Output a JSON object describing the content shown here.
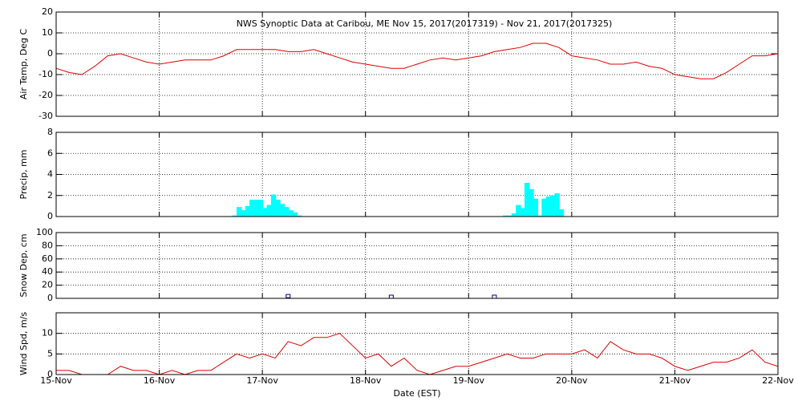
{
  "chart_data": [
    {
      "type": "line",
      "title": "NWS Synoptic Data at Caribou, ME    Nov 15, 2017(2017319) - Nov 21, 2017(2017325)",
      "ylabel": "Air Temp, Deg C",
      "color": "#e00000",
      "xlim": [
        0,
        168
      ],
      "xticks": [
        0,
        24,
        48,
        72,
        96,
        120,
        144,
        168
      ],
      "ylim": [
        -30,
        20
      ],
      "yticks": [
        -30,
        -20,
        -10,
        0,
        10,
        20
      ],
      "grid": true,
      "x": [
        0,
        3,
        6,
        9,
        12,
        15,
        18,
        21,
        24,
        27,
        30,
        33,
        36,
        39,
        42,
        45,
        48,
        51,
        54,
        57,
        60,
        63,
        66,
        69,
        72,
        75,
        78,
        81,
        84,
        87,
        90,
        93,
        96,
        99,
        102,
        105,
        108,
        111,
        114,
        117,
        120,
        123,
        126,
        129,
        132,
        135,
        138,
        141,
        144,
        147,
        150,
        153,
        156,
        159,
        162,
        165,
        168
      ],
      "values": [
        -7,
        -9,
        -10,
        -6,
        -1,
        0,
        -2,
        -4,
        -5,
        -4,
        -3,
        -3,
        -3,
        -1,
        2,
        2,
        2,
        2,
        1,
        1,
        2,
        0,
        -2,
        -4,
        -5,
        -6,
        -7,
        -7,
        -5,
        -3,
        -2,
        -3,
        -2,
        -1,
        1,
        2,
        3,
        5,
        5,
        3,
        -1,
        -2,
        -3,
        -5,
        -5,
        -4,
        -6,
        -7,
        -10,
        -11,
        -12,
        -12,
        -9,
        -5,
        -1,
        -1,
        0
      ]
    },
    {
      "type": "bar",
      "ylabel": "Precip, mm",
      "color": "#00ffff",
      "xlim": [
        0,
        168
      ],
      "xticks": [
        0,
        24,
        48,
        72,
        96,
        120,
        144,
        168
      ],
      "ylim": [
        0,
        8
      ],
      "yticks": [
        0,
        2,
        4,
        6,
        8
      ],
      "grid": true,
      "x": [
        41,
        42,
        43,
        44,
        45,
        46,
        47,
        48,
        49,
        50,
        51,
        52,
        53,
        54,
        55,
        56,
        104,
        105,
        106,
        107,
        108,
        109,
        110,
        111,
        112,
        113,
        114,
        115,
        116,
        117
      ],
      "values": [
        0.1,
        0.9,
        0.6,
        1.0,
        1.6,
        1.6,
        1.6,
        0.8,
        1.1,
        2.1,
        1.6,
        1.2,
        0.9,
        0.6,
        0.4,
        0.1,
        0.1,
        0.1,
        0.3,
        1.1,
        0.8,
        3.2,
        2.6,
        1.7,
        0.1,
        1.7,
        1.9,
        2.0,
        2.2,
        0.7
      ]
    },
    {
      "type": "scatter",
      "ylabel": "Snow Dep, cm",
      "color": "#000080",
      "xlim": [
        0,
        168
      ],
      "xticks": [
        0,
        24,
        48,
        72,
        96,
        120,
        144,
        168
      ],
      "ylim": [
        0,
        100
      ],
      "yticks": [
        0,
        20,
        40,
        60,
        80,
        100
      ],
      "grid": true,
      "x": [
        54,
        78,
        102
      ],
      "values": [
        1,
        0,
        0
      ]
    },
    {
      "type": "line",
      "ylabel": "Wind Spd, m/s",
      "xlabel": "Date (EST)",
      "color": "#e00000",
      "xlim": [
        0,
        168
      ],
      "xticks": [
        {
          "value": 0,
          "label": "15-Nov"
        },
        {
          "value": 24,
          "label": "16-Nov"
        },
        {
          "value": 48,
          "label": "17-Nov"
        },
        {
          "value": 72,
          "label": "18-Nov"
        },
        {
          "value": 96,
          "label": "19-Nov"
        },
        {
          "value": 120,
          "label": "20-Nov"
        },
        {
          "value": 144,
          "label": "21-Nov"
        },
        {
          "value": 168,
          "label": "22-Nov"
        }
      ],
      "ylim": [
        0,
        15
      ],
      "yticks": [
        0,
        5,
        10
      ],
      "grid": true,
      "x": [
        0,
        3,
        6,
        9,
        12,
        15,
        18,
        21,
        24,
        27,
        30,
        33,
        36,
        39,
        42,
        45,
        48,
        51,
        54,
        57,
        60,
        63,
        66,
        69,
        72,
        75,
        78,
        81,
        84,
        87,
        90,
        93,
        96,
        99,
        102,
        105,
        108,
        111,
        114,
        117,
        120,
        123,
        126,
        129,
        132,
        135,
        138,
        141,
        144,
        147,
        150,
        153,
        156,
        159,
        162,
        165,
        168
      ],
      "values": [
        1,
        1,
        0,
        0,
        0,
        2,
        1,
        1,
        0,
        1,
        0,
        1,
        1,
        3,
        5,
        4,
        5,
        4,
        8,
        7,
        9,
        9,
        10,
        7,
        4,
        5,
        2,
        4,
        1,
        0,
        1,
        2,
        2,
        3,
        4,
        5,
        4,
        4,
        5,
        5,
        5,
        6,
        4,
        8,
        6,
        5,
        5,
        4,
        2,
        1,
        2,
        3,
        3,
        4,
        6,
        3,
        2
      ]
    }
  ]
}
